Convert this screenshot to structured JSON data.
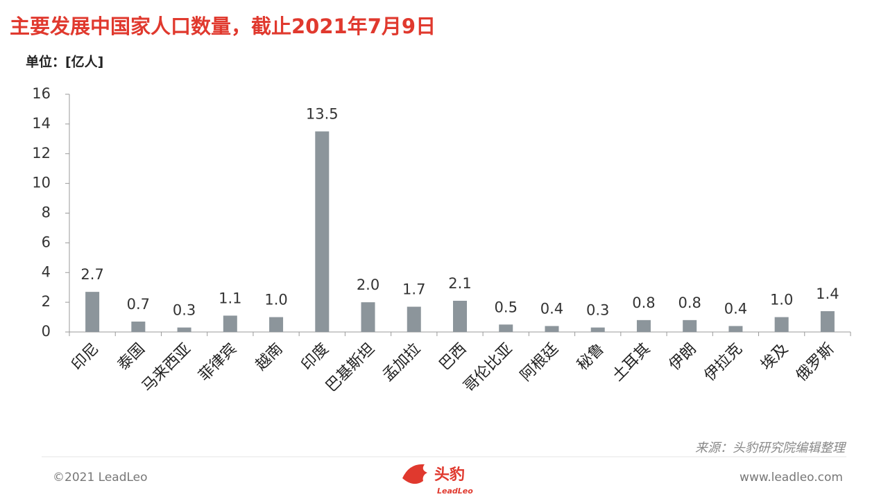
{
  "chart_data": {
    "type": "bar",
    "title": "主要发展中国家人口数量，截止2021年7月9日",
    "unit_label": "单位：[亿人]",
    "categories": [
      "印尼",
      "泰国",
      "马来西亚",
      "菲律宾",
      "越南",
      "印度",
      "巴基斯坦",
      "孟加拉",
      "巴西",
      "哥伦比亚",
      "阿根廷",
      "秘鲁",
      "土耳其",
      "伊朗",
      "伊拉克",
      "埃及",
      "俄罗斯"
    ],
    "values": [
      2.7,
      0.7,
      0.3,
      1.1,
      1.0,
      13.5,
      2.0,
      1.7,
      2.1,
      0.5,
      0.4,
      0.3,
      0.8,
      0.8,
      0.4,
      1.0,
      1.4
    ],
    "value_labels": [
      "2.7",
      "0.7",
      "0.3",
      "1.1",
      "1.0",
      "13.5",
      "2.0",
      "1.7",
      "2.1",
      "0.5",
      "0.4",
      "0.3",
      "0.8",
      "0.8",
      "0.4",
      "1.0",
      "1.4"
    ],
    "color": "#8c959b",
    "ylim": [
      0,
      16
    ],
    "yticks": [
      0,
      2,
      4,
      6,
      8,
      10,
      12,
      14,
      16
    ],
    "grid": false,
    "source": "来源：头豹研究院编辑整理"
  },
  "footer": {
    "copyright": "©2021 LeadLeo",
    "logo_name": "头豹",
    "logo_sub": "LeadLeo",
    "website": "www.leadleo.com"
  }
}
